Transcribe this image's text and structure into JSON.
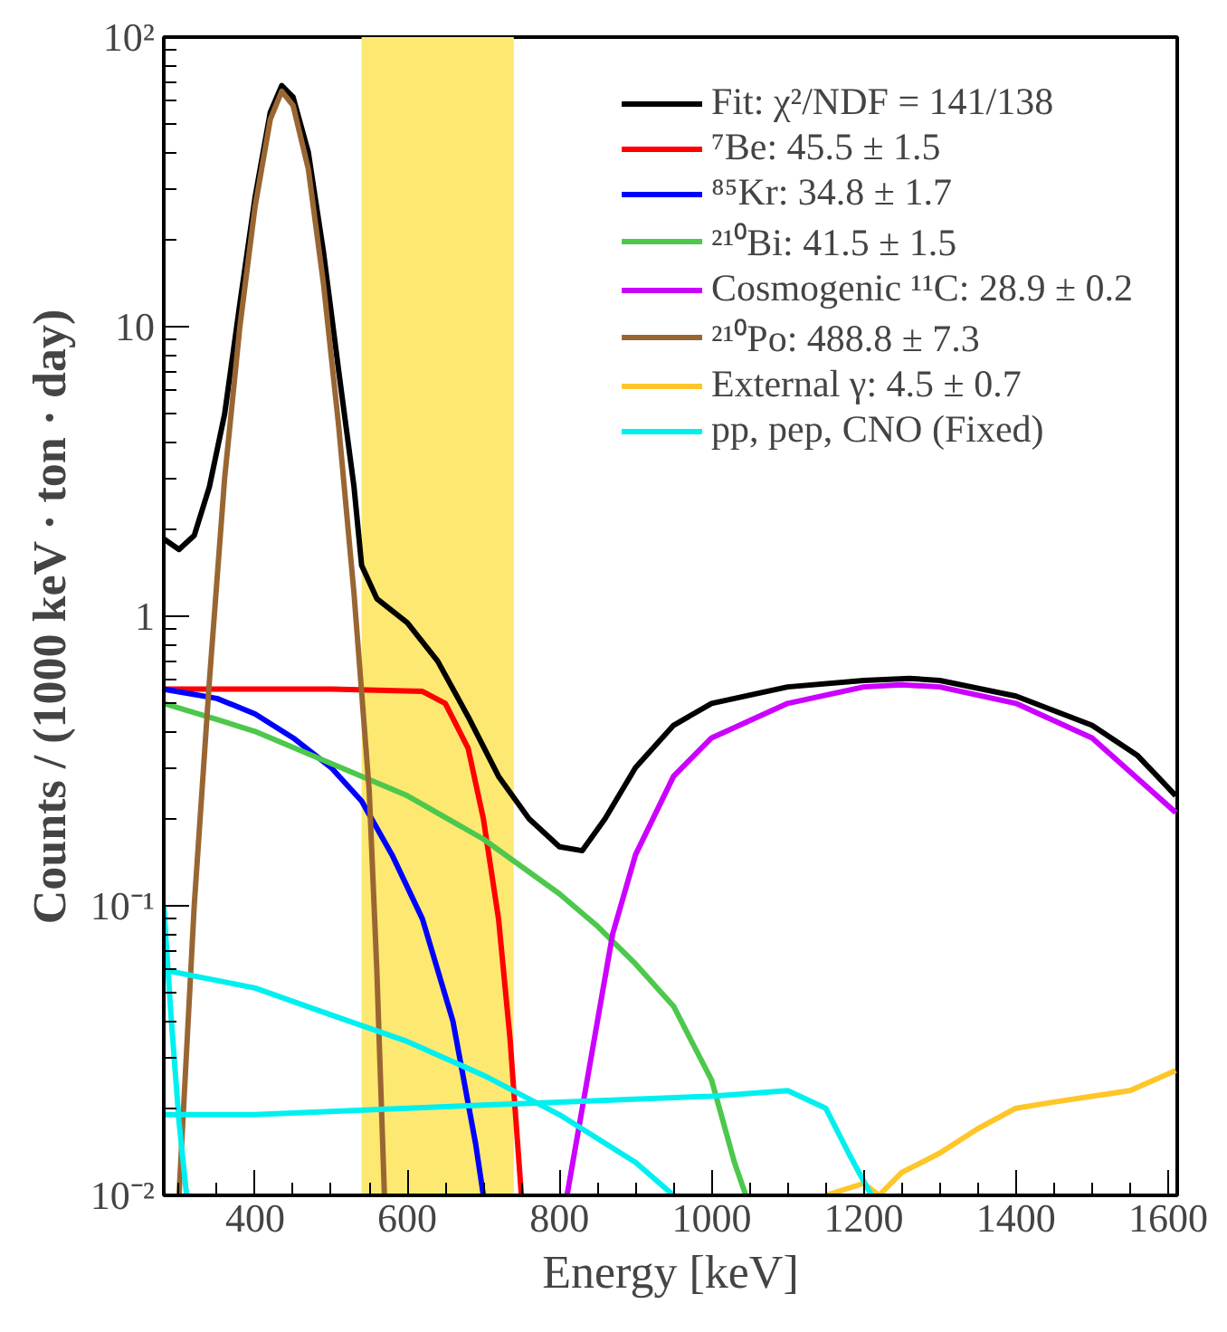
{
  "chart_data": {
    "type": "line",
    "xlabel": "Energy [keV]",
    "ylabel": "Counts / (1000 keV · ton · day)",
    "log": "y",
    "xlim": [
      280,
      1612
    ],
    "ylim": [
      0.01,
      100
    ],
    "xticks": [
      400,
      600,
      800,
      1000,
      1200,
      1400,
      1600
    ],
    "yticks": [
      {
        "value": 0.01,
        "label": "10⁻²"
      },
      {
        "value": 0.1,
        "label": "10⁻¹"
      },
      1,
      10,
      {
        "value": 100,
        "label": "10²"
      }
    ],
    "grid": false,
    "legend": "top right",
    "line_style": "solid",
    "marker": "none",
    "bands": [
      {
        "axis": "x",
        "from": 540,
        "to": 740,
        "color": "#fde872"
      }
    ],
    "series": [
      {
        "name": "Fit: χ²/NDF = 141/138",
        "color": "#000000",
        "x": [
          280,
          300,
          320,
          340,
          360,
          380,
          400,
          420,
          435,
          450,
          470,
          490,
          510,
          530,
          540,
          560,
          600,
          640,
          680,
          720,
          760,
          800,
          830,
          860,
          900,
          950,
          1000,
          1100,
          1200,
          1260,
          1300,
          1400,
          1500,
          1560,
          1610
        ],
        "values": [
          1.85,
          1.7,
          1.9,
          2.8,
          5,
          12,
          28,
          55,
          68,
          62,
          40,
          18,
          7,
          2.8,
          1.5,
          1.15,
          0.95,
          0.7,
          0.45,
          0.28,
          0.2,
          0.16,
          0.155,
          0.2,
          0.3,
          0.42,
          0.5,
          0.57,
          0.6,
          0.61,
          0.6,
          0.53,
          0.42,
          0.33,
          0.24
        ]
      },
      {
        "name": "⁷Be: 45.5 ± 1.5",
        "color": "#ff0000",
        "x": [
          280,
          400,
          500,
          620,
          650,
          680,
          700,
          720,
          735,
          750
        ],
        "values": [
          0.56,
          0.56,
          0.56,
          0.55,
          0.5,
          0.35,
          0.2,
          0.09,
          0.035,
          0.01
        ]
      },
      {
        "name": "⁸⁵Kr: 34.8 ± 1.7",
        "color": "#0000ff",
        "x": [
          280,
          350,
          400,
          450,
          500,
          540,
          580,
          620,
          660,
          690,
          700
        ],
        "values": [
          0.56,
          0.52,
          0.46,
          0.38,
          0.3,
          0.23,
          0.15,
          0.09,
          0.04,
          0.015,
          0.01
        ]
      },
      {
        "name": "²¹⁰Bi: 41.5 ± 1.5",
        "color": "#4cc84c",
        "x": [
          280,
          350,
          400,
          500,
          600,
          700,
          800,
          850,
          900,
          950,
          1000,
          1030,
          1045
        ],
        "values": [
          0.5,
          0.44,
          0.4,
          0.31,
          0.24,
          0.17,
          0.11,
          0.085,
          0.063,
          0.045,
          0.025,
          0.013,
          0.01
        ]
      },
      {
        "name": "Cosmogenic ¹¹C: 28.9 ± 0.2",
        "color": "#cc00ff",
        "x": [
          810,
          830,
          850,
          870,
          900,
          950,
          1000,
          1100,
          1200,
          1250,
          1300,
          1400,
          1500,
          1610
        ],
        "values": [
          0.01,
          0.02,
          0.04,
          0.08,
          0.15,
          0.28,
          0.38,
          0.5,
          0.57,
          0.58,
          0.57,
          0.5,
          0.38,
          0.21
        ]
      },
      {
        "name": "²¹⁰Po: 488.8 ± 7.3",
        "color": "#996633",
        "x": [
          300,
          320,
          340,
          360,
          380,
          400,
          420,
          435,
          450,
          470,
          490,
          510,
          530,
          550,
          560,
          570
        ],
        "values": [
          0.01,
          0.1,
          0.6,
          3,
          10,
          26,
          52,
          65,
          58,
          35,
          14,
          4.5,
          1.2,
          0.25,
          0.06,
          0.01
        ]
      },
      {
        "name": "External γ: 4.5 ± 0.7",
        "color": "#ffc629",
        "x": [
          1150,
          1200,
          1220,
          1250,
          1300,
          1350,
          1400,
          1450,
          1500,
          1550,
          1610
        ],
        "values": [
          0.01,
          0.011,
          0.01,
          0.012,
          0.014,
          0.017,
          0.02,
          0.021,
          0.022,
          0.023,
          0.027
        ]
      },
      {
        "name": "pp, pep, CNO (Fixed)",
        "color": "#00f0f0",
        "x": [
          280,
          290,
          300,
          310
        ],
        "values": [
          0.1,
          0.04,
          0.018,
          0.01
        ]
      },
      {
        "color": "#00f0f0",
        "x": [
          280,
          400,
          500,
          600,
          700,
          800,
          900,
          950
        ],
        "values": [
          0.06,
          0.052,
          0.042,
          0.034,
          0.026,
          0.019,
          0.013,
          0.01
        ]
      },
      {
        "color": "#00f0f0",
        "x": [
          280,
          400,
          600,
          800,
          1000,
          1100,
          1150,
          1180,
          1210
        ],
        "values": [
          0.019,
          0.019,
          0.02,
          0.021,
          0.022,
          0.023,
          0.02,
          0.014,
          0.01
        ]
      }
    ]
  }
}
